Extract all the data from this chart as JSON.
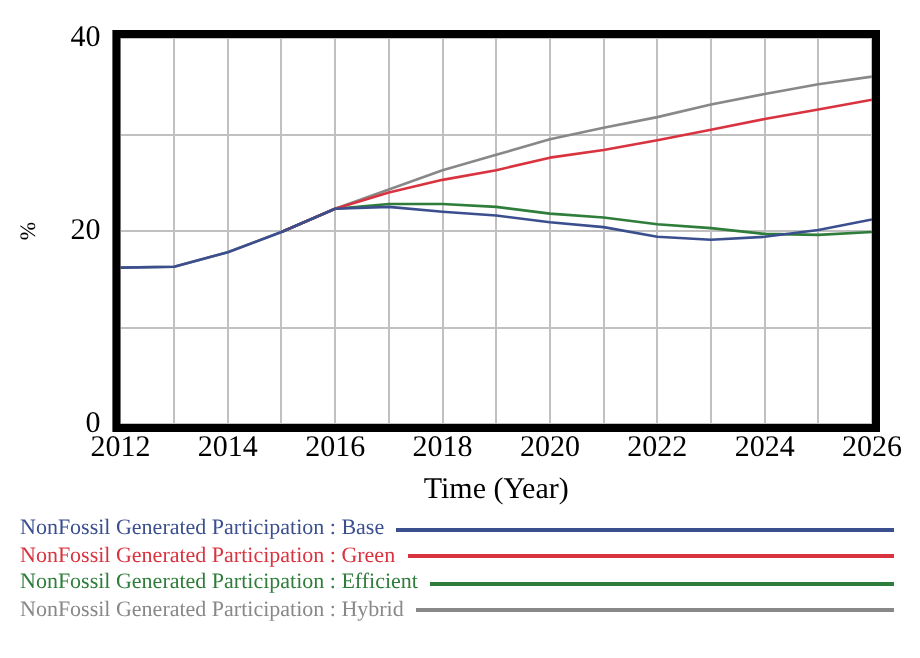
{
  "chart_data": {
    "type": "line",
    "xlabel": "Time (Year)",
    "ylabel": "%",
    "x": [
      2012,
      2013,
      2014,
      2015,
      2016,
      2017,
      2018,
      2019,
      2020,
      2021,
      2022,
      2023,
      2024,
      2025,
      2026
    ],
    "xlim": [
      2012,
      2026
    ],
    "xticks": [
      2012,
      {
        "value": 2013,
        "label": null
      },
      2014,
      {
        "value": 2015,
        "label": null
      },
      2016,
      {
        "value": 2017,
        "label": null
      },
      2018,
      {
        "value": 2019,
        "label": null
      },
      2020,
      {
        "value": 2021,
        "label": null
      },
      2022,
      {
        "value": 2023,
        "label": null
      },
      2024,
      {
        "value": 2025,
        "label": null
      },
      2026
    ],
    "ylim": [
      0,
      40
    ],
    "yticks": [
      0,
      {
        "value": 10,
        "label": null
      },
      20,
      {
        "value": 30,
        "label": null
      },
      40
    ],
    "grid": true,
    "legend": "bottom",
    "series": [
      {
        "name": "NonFossil Generated Participation : Base",
        "color": "#3b4f8f",
        "values": [
          16.2,
          16.3,
          17.8,
          19.9,
          22.3,
          22.5,
          22.0,
          21.6,
          20.9,
          20.4,
          19.4,
          19.1,
          19.4,
          20.1,
          21.2
        ]
      },
      {
        "name": "NonFossil Generated Participation : Green",
        "color": "#d9333f",
        "values": [
          null,
          null,
          null,
          19.9,
          22.3,
          24.0,
          25.3,
          26.3,
          27.6,
          28.4,
          29.4,
          30.5,
          31.6,
          32.6,
          33.6
        ]
      },
      {
        "name": "NonFossil Generated Participation : Efficient",
        "color": "#2e7d3a",
        "values": [
          null,
          null,
          null,
          19.9,
          22.3,
          22.8,
          22.8,
          22.5,
          21.8,
          21.4,
          20.7,
          20.3,
          19.7,
          19.6,
          19.9
        ]
      },
      {
        "name": "NonFossil Generated Participation : Hybrid",
        "color": "#888888",
        "values": [
          16.2,
          16.3,
          17.8,
          19.9,
          22.3,
          24.3,
          26.3,
          27.9,
          29.5,
          30.7,
          31.8,
          33.1,
          34.2,
          35.2,
          36.0
        ]
      }
    ]
  }
}
